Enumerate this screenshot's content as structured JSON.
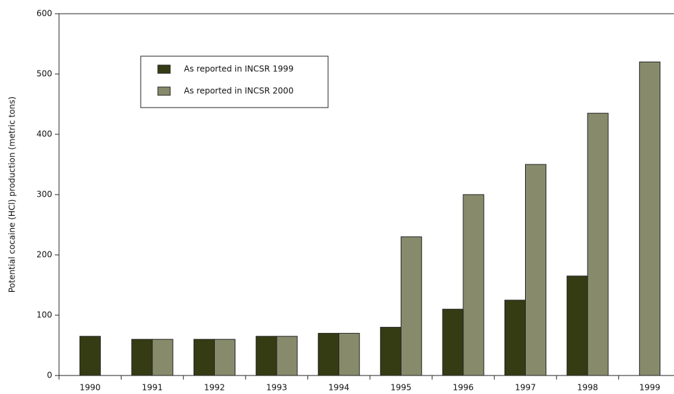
{
  "chart_data": {
    "type": "bar",
    "y_label": "Potential cocaine (HCl) production (metric tons)",
    "categories": [
      "1990",
      "1991",
      "1992",
      "1993",
      "1994",
      "1995",
      "1996",
      "1997",
      "1998",
      "1999"
    ],
    "series": [
      {
        "name": "As reported in INCSR 1999",
        "color": "#353c14",
        "values": [
          65,
          60,
          60,
          65,
          70,
          80,
          110,
          125,
          165,
          null
        ]
      },
      {
        "name": "As reported in INCSR 2000",
        "color": "#878b6c",
        "values": [
          null,
          60,
          60,
          65,
          70,
          230,
          300,
          350,
          435,
          520
        ]
      }
    ],
    "ylim": [
      0,
      600
    ],
    "yticks": [
      0,
      100,
      200,
      300,
      400,
      500,
      600
    ],
    "legend": "upper left"
  }
}
